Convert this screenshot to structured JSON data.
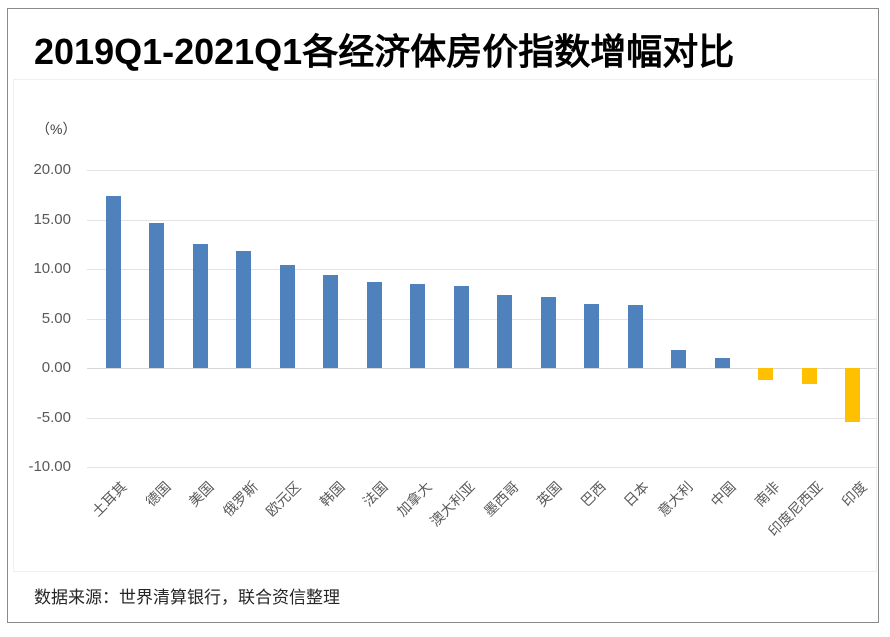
{
  "chart_data": {
    "type": "bar",
    "title": "2019Q1-2021Q1各经济体房价指数增幅对比",
    "unit_label": "（%）",
    "categories": [
      "土耳其",
      "德国",
      "美国",
      "俄罗斯",
      "欧元区",
      "韩国",
      "法国",
      "加拿大",
      "澳大利亚",
      "墨西哥",
      "英国",
      "巴西",
      "日本",
      "意大利",
      "中国",
      "南非",
      "印度尼西亚",
      "印度"
    ],
    "values": [
      17.4,
      14.7,
      12.5,
      11.8,
      10.4,
      9.4,
      8.7,
      8.5,
      8.3,
      7.4,
      7.2,
      6.5,
      6.4,
      1.8,
      1.0,
      -1.2,
      -1.6,
      -5.4
    ],
    "xlabel": "",
    "ylabel": "（%）",
    "ylim": [
      -10,
      20
    ],
    "yticks": [
      20,
      15,
      10,
      5,
      0,
      -5,
      -10
    ],
    "ytick_labels": [
      "20.00",
      "15.00",
      "10.00",
      "5.00",
      "0.00",
      "-5.00",
      "-10.00"
    ],
    "grid": true,
    "legend": "none",
    "colors": {
      "positive_bar": "#4F81BD",
      "negative_bar": "#FFC000",
      "gridline": "#E3E3E3",
      "tick_text": "#595959",
      "title_text": "#000000"
    }
  },
  "source_note": "数据来源：世界清算银行，联合资信整理"
}
